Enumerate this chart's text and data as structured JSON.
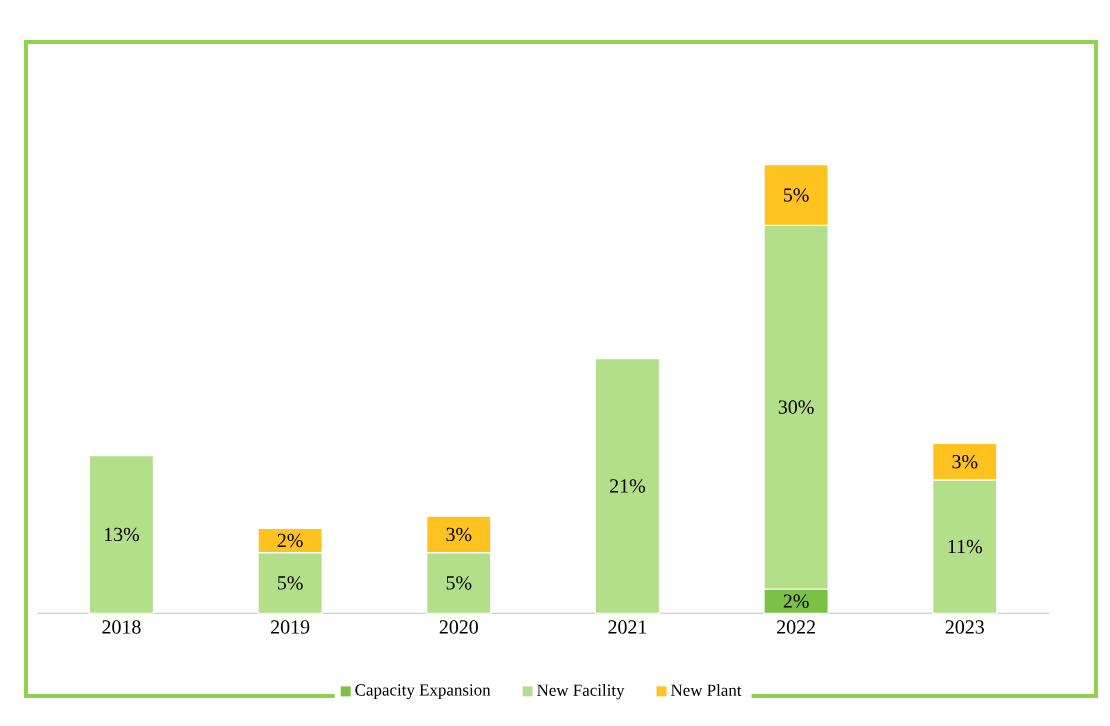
{
  "chart_data": {
    "type": "bar",
    "stacked": true,
    "legend": "bottom",
    "categories": [
      "2018",
      "2019",
      "2020",
      "2021",
      "2022",
      "2023"
    ],
    "series": [
      {
        "name": "Capacity Expansion",
        "color": "#7cc146",
        "values": [
          null,
          null,
          null,
          null,
          2,
          null
        ],
        "value_labels": [
          null,
          null,
          null,
          null,
          "2%",
          null
        ]
      },
      {
        "name": "New Facility",
        "color": "#b3df8b",
        "values": [
          13,
          5,
          5,
          21,
          30,
          11
        ],
        "value_labels": [
          "13%",
          "5%",
          "5%",
          "21%",
          "30%",
          "11%"
        ]
      },
      {
        "name": "New Plant",
        "color": "#ffc21f",
        "values": [
          null,
          2,
          3,
          null,
          5,
          3
        ],
        "value_labels": [
          null,
          "2%",
          "3%",
          null,
          "5%",
          "3%"
        ]
      }
    ]
  }
}
